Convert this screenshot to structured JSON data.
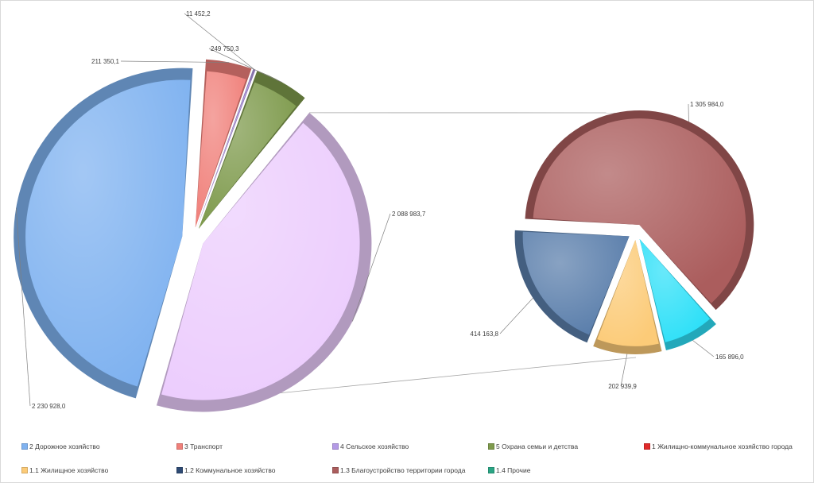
{
  "chart_data": {
    "type": "pie-of-pie",
    "title": "",
    "main_pie": {
      "slices": [
        {
          "legend_key": "s2",
          "value": 2230928.0,
          "label": "2 230 928,0",
          "color": "#7fb2f0"
        },
        {
          "legend_key": "s3",
          "value": 211350.1,
          "label": "211 350,1",
          "color": "#f0807a"
        },
        {
          "legend_key": "s4",
          "value": 11452.2,
          "label": "11 452,2",
          "color": "#b49ae6"
        },
        {
          "legend_key": "s5",
          "value": 249750.3,
          "label": "249 750,3",
          "color": "#7e9a4c"
        },
        {
          "legend_key": "s1",
          "value": 2088983.7,
          "label": "2 088 983,7",
          "color": "#eccdfd"
        }
      ]
    },
    "secondary_pie": {
      "slices": [
        {
          "legend_key": "s13",
          "value": 1305984.0,
          "label": "1 305 984,0",
          "color": "#ab5d5d"
        },
        {
          "legend_key": "s14",
          "value": 165896.0,
          "label": "165 896,0",
          "color": "#2ee0f8"
        },
        {
          "legend_key": "s11",
          "value": 202939.9,
          "label": "202 939,9",
          "color": "#fccb78"
        },
        {
          "legend_key": "s12",
          "value": 414163.8,
          "label": "414 163,8",
          "color": "#5a7eab"
        }
      ]
    },
    "legend": {
      "placement": "bottom",
      "items": [
        {
          "key": "s2",
          "label": "2 Дорожное хозяйство",
          "color": "#7fb2f0"
        },
        {
          "key": "s3",
          "label": "3 Транспорт",
          "color": "#f0807a"
        },
        {
          "key": "s4",
          "label": "4 Сельское хозяйство",
          "color": "#b49ae6"
        },
        {
          "key": "s5",
          "label": "5 Охрана семьи и детства",
          "color": "#7e9a4c"
        },
        {
          "key": "s1",
          "label": "1 Жилищно-коммунальное  хозяйство города",
          "color": "#e02a2a"
        },
        {
          "key": "s11",
          "label": "1.1 Жилищное хозяйство",
          "color": "#fccb78"
        },
        {
          "key": "s12",
          "label": "1.2 Коммунальное хозяйство",
          "color": "#2e4a74"
        },
        {
          "key": "s13",
          "label": "1.3 Благоустройство территории города",
          "color": "#ab5d5d"
        },
        {
          "key": "s14",
          "label": "1.4 Прочие",
          "color": "#2aa584"
        }
      ]
    }
  }
}
